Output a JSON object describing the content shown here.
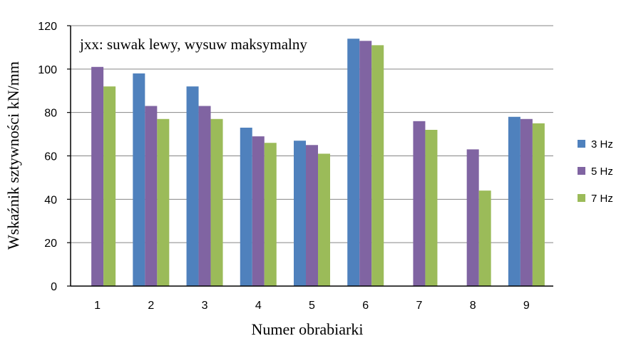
{
  "chart_data": {
    "type": "bar",
    "title": "jxx: suwak lewy, wysuw maksymalny",
    "xlabel": "Numer obrabiarki",
    "ylabel": "Wskaźnik sztywności  kN/mm",
    "categories": [
      "1",
      "2",
      "3",
      "4",
      "5",
      "6",
      "7",
      "8",
      "9"
    ],
    "ylim": [
      0,
      120
    ],
    "yticks": [
      "0",
      "20",
      "40",
      "60",
      "80",
      "100",
      "120"
    ],
    "grid": true,
    "legend_position": "right",
    "series": [
      {
        "name": "3 Hz",
        "color": "#4F81BD",
        "values": [
          null,
          98,
          92,
          73,
          67,
          114,
          null,
          null,
          78
        ]
      },
      {
        "name": "5 Hz",
        "color": "#8064A2",
        "values": [
          101,
          83,
          83,
          69,
          65,
          113,
          76,
          63,
          77
        ]
      },
      {
        "name": "7 Hz",
        "color": "#9BBB59",
        "values": [
          92,
          77,
          77,
          66,
          61,
          111,
          72,
          44,
          75
        ]
      }
    ]
  }
}
